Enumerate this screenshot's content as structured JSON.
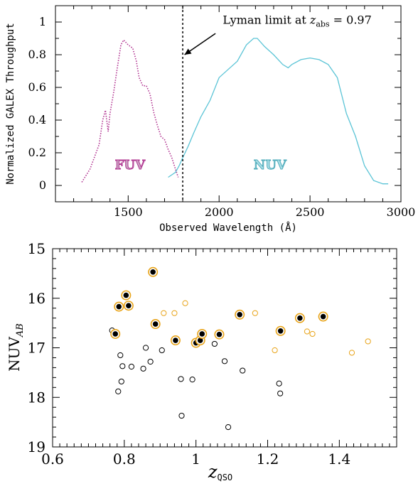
{
  "chart_data": [
    {
      "type": "line",
      "xlabel": "Observed Wavelength (Å)",
      "ylabel": "Normalized GALEX Throughput",
      "xlim": [
        1100,
        3000
      ],
      "ylim": [
        -0.1,
        1.1
      ],
      "x_ticks": [
        1500,
        2000,
        2500,
        3000
      ],
      "y_ticks": [
        0,
        0.2,
        0.4,
        0.6,
        0.8,
        1
      ],
      "y_tick_labels": [
        "0",
        "0.2",
        "0.4",
        "0.6",
        "0.8",
        "1"
      ],
      "colors": {
        "FUV": "#b0308f",
        "NUV": "#5bc4d6"
      },
      "series": [
        {
          "name": "FUV",
          "line_style": "dotted",
          "x": [
            1245,
            1290,
            1340,
            1360,
            1375,
            1390,
            1400,
            1420,
            1440,
            1460,
            1475,
            1500,
            1525,
            1545,
            1560,
            1580,
            1600,
            1620,
            1640,
            1660,
            1680,
            1700,
            1720,
            1740,
            1760,
            1775
          ],
          "y": [
            0.02,
            0.1,
            0.25,
            0.4,
            0.46,
            0.33,
            0.44,
            0.57,
            0.72,
            0.86,
            0.89,
            0.86,
            0.84,
            0.76,
            0.66,
            0.61,
            0.61,
            0.56,
            0.45,
            0.37,
            0.3,
            0.28,
            0.22,
            0.17,
            0.1,
            0.05
          ]
        },
        {
          "name": "NUV",
          "line_style": "solid",
          "x": [
            1720,
            1760,
            1780,
            1800,
            1830,
            1860,
            1900,
            1950,
            2000,
            2050,
            2100,
            2150,
            2190,
            2210,
            2250,
            2300,
            2350,
            2380,
            2400,
            2450,
            2500,
            2550,
            2600,
            2650,
            2700,
            2750,
            2800,
            2850,
            2900,
            2930
          ],
          "y": [
            0.05,
            0.08,
            0.12,
            0.17,
            0.24,
            0.32,
            0.42,
            0.52,
            0.66,
            0.71,
            0.76,
            0.86,
            0.9,
            0.9,
            0.85,
            0.8,
            0.74,
            0.72,
            0.74,
            0.77,
            0.78,
            0.77,
            0.74,
            0.66,
            0.44,
            0.3,
            0.12,
            0.03,
            0.01,
            0.01
          ]
        }
      ],
      "annotations": {
        "vertical_line_x": 1800,
        "arrow_tip": [
          1810,
          0.8
        ],
        "arrow_tail": [
          1980,
          0.93
        ],
        "label_prefix": "Lyman limit at ",
        "label_var": "z",
        "label_sub": "abs",
        "label_value": " = 0.97",
        "label_pos": [
          2020,
          0.99
        ],
        "fuv_label": "FUV",
        "fuv_label_pos": [
          1510,
          0.1
        ],
        "nuv_label": "NUV",
        "nuv_label_pos": [
          2280,
          0.1
        ]
      },
      "grid": false
    },
    {
      "type": "scatter",
      "xlabel_main": "z",
      "xlabel_sub": "QSO",
      "ylabel_main": "NUV",
      "ylabel_sub": "AB",
      "xlim": [
        0.6,
        1.56
      ],
      "ylim": [
        19,
        15
      ],
      "y_inverted": true,
      "x_ticks": [
        0.6,
        0.8,
        1.0,
        1.2,
        1.4
      ],
      "x_tick_labels": [
        "0.6",
        "0.8",
        "1",
        "1.2",
        "1.4"
      ],
      "y_ticks": [
        15,
        16,
        17,
        18,
        19
      ],
      "colors": {
        "black_open": "#000000",
        "orange": "#e8a317",
        "filled": "#000000"
      },
      "series": [
        {
          "name": "open black circles",
          "x": [
            0.766,
            0.783,
            0.789,
            0.792,
            0.795,
            0.82,
            0.853,
            0.86,
            0.873,
            0.905,
            0.958,
            0.96,
            0.99,
            1.052,
            1.08,
            1.09,
            1.13,
            1.232,
            1.235
          ],
          "y": [
            16.65,
            17.88,
            17.15,
            17.68,
            17.37,
            17.38,
            17.42,
            17.0,
            17.28,
            17.05,
            17.63,
            18.37,
            17.64,
            16.92,
            17.27,
            18.6,
            17.46,
            17.72,
            17.92
          ]
        },
        {
          "name": "open orange circles",
          "x": [
            0.91,
            0.94,
            0.97,
            1.165,
            1.22,
            1.31,
            1.325,
            1.435,
            1.48
          ],
          "y": [
            16.3,
            16.3,
            16.1,
            16.3,
            17.05,
            16.67,
            16.72,
            17.1,
            16.87
          ]
        },
        {
          "name": "filled circles in orange rings",
          "x": [
            0.775,
            0.785,
            0.805,
            0.812,
            0.88,
            0.887,
            0.943,
            1.0,
            1.012,
            1.017,
            1.065,
            1.122,
            1.236,
            1.29,
            1.355
          ],
          "y": [
            16.72,
            16.17,
            15.94,
            16.15,
            15.47,
            16.52,
            16.85,
            16.9,
            16.85,
            16.72,
            16.73,
            16.33,
            16.66,
            16.4,
            16.37
          ]
        }
      ],
      "grid": false
    }
  ]
}
